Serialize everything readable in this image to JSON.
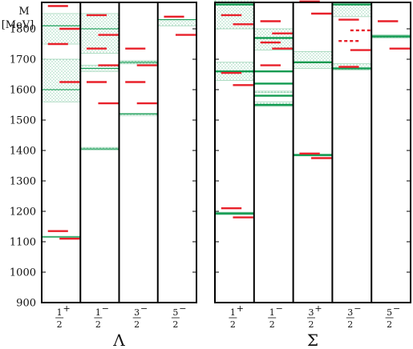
{
  "chart_data": {
    "type": "level-scheme",
    "ylabel_line1": "M",
    "ylabel_line2": "[MeV]",
    "ylim": [
      900,
      1900
    ],
    "yticks": [
      900,
      1000,
      1100,
      1200,
      1300,
      1400,
      1500,
      1600,
      1700,
      1800
    ],
    "colors": {
      "calc": "#e8202a",
      "exp": "#109a50",
      "hatch": "#9bd3b4",
      "frame": "#000000"
    },
    "panels": [
      {
        "title": "Λ",
        "columns": [
          {
            "label": {
              "num": "1",
              "den": "2",
              "sup": "+"
            },
            "calc": [
              1875,
              1800,
              1750,
              1625,
              1135,
              1110
            ],
            "exp": [
              {
                "mass": 1600,
                "bands": [
                  [
                    1560,
                    1700
                  ]
                ],
                "strong": false
              },
              {
                "mass": 1810,
                "bands": [
                  [
                    1750,
                    1850
                  ]
                ],
                "strong": false
              },
              {
                "mass": 1116,
                "bands": [
                  [
                    1114,
                    1118
                  ]
                ],
                "strong": false
              }
            ]
          },
          {
            "label": {
              "num": "1",
              "den": "2",
              "sup": "−"
            },
            "calc": [
              1845,
              1780,
              1735,
              1680,
              1625,
              1555
            ],
            "exp": [
              {
                "mass": 1405,
                "bands": [
                  [
                    1402,
                    1410
                  ]
                ],
                "strong": false
              },
              {
                "mass": 1670,
                "bands": [
                  [
                    1660,
                    1680
                  ]
                ],
                "strong": false
              },
              {
                "mass": 1800,
                "bands": [
                  [
                    1720,
                    1850
                  ]
                ],
                "strong": false
              }
            ]
          },
          {
            "label": {
              "num": "3",
              "den": "2",
              "sup": "−"
            },
            "calc": [
              1735,
              1680,
              1625,
              1555
            ],
            "exp": [
              {
                "mass": 1520,
                "bands": [
                  [
                    1515,
                    1523
                  ]
                ],
                "strong": false
              },
              {
                "mass": 1690,
                "bands": [
                  [
                    1685,
                    1695
                  ]
                ],
                "strong": false
              }
            ]
          },
          {
            "label": {
              "num": "5",
              "den": "2",
              "sup": "−"
            },
            "calc": [
              1840,
              1780
            ],
            "exp": [
              {
                "mass": 1830,
                "bands": [
                  [
                    1810,
                    1830
                  ]
                ],
                "strong": false
              }
            ]
          }
        ]
      },
      {
        "title": "Σ",
        "columns": [
          {
            "label": {
              "num": "1",
              "den": "2",
              "sup": "+"
            },
            "calc": [
              1845,
              1815,
              1655,
              1615,
              1210,
              1180
            ],
            "exp": [
              {
                "mass": 1193,
                "bands": [
                  [
                    1189,
                    1197
                  ]
                ],
                "strong": true
              },
              {
                "mass": 1660,
                "bands": [
                  [
                    1630,
                    1690
                  ]
                ],
                "strong": true
              },
              {
                "mass": 1880,
                "bands": [
                  [
                    1800,
                    1900
                  ]
                ],
                "strong": true
              }
            ]
          },
          {
            "label": {
              "num": "1",
              "den": "2",
              "sup": "−"
            },
            "calc": [
              1825,
              1785,
              1755,
              1735,
              1680
            ],
            "exp": [
              {
                "mass": 1620,
                "bands": [
                  [
                    1620,
                    1620
                  ]
                ],
                "strong": true
              },
              {
                "mass": 1660,
                "bands": [
                  [
                    1645,
                    1645
                  ]
                ],
                "strong": true
              },
              {
                "mass": 1580,
                "bands": [
                  [
                    1590,
                    1595
                  ]
                ],
                "strong": true
              },
              {
                "mass": 1550,
                "bands": [
                  [
                    1545,
                    1560
                  ]
                ],
                "strong": true
              },
              {
                "mass": 1770,
                "bands": [
                  [
                    1730,
                    1800
                  ]
                ],
                "strong": true
              }
            ]
          },
          {
            "label": {
              "num": "3",
              "den": "2",
              "sup": "+"
            },
            "calc": [
              1890,
              1850,
              1390,
              1375
            ],
            "exp": [
              {
                "mass": 1385,
                "bands": [
                  [
                    1382,
                    1388
                  ]
                ],
                "strong": true
              },
              {
                "mass": 1690,
                "bands": [
                  [
                    1670,
                    1725
                  ]
                ],
                "strong": true
              }
            ]
          },
          {
            "label": {
              "num": "3",
              "den": "2",
              "sup": "−"
            },
            "calc": [
              1830,
              1795,
              1760,
              1730,
              1675
            ],
            "exp": [
              {
                "mass": 1670,
                "bands": [
                  [
                    1665,
                    1685
                  ]
                ],
                "strong": true
              },
              {
                "mass": 1880,
                "bands": [
                  [
                    1840,
                    1880
                  ]
                ],
                "strong": true
              }
            ],
            "dashed": [
              1795,
              1760
            ]
          },
          {
            "label": {
              "num": "5",
              "den": "2",
              "sup": "−"
            },
            "calc": [
              1825,
              1735
            ],
            "exp": [
              {
                "mass": 1775,
                "bands": [
                  [
                    1770,
                    1780
                  ]
                ],
                "strong": true
              }
            ]
          }
        ]
      }
    ]
  }
}
